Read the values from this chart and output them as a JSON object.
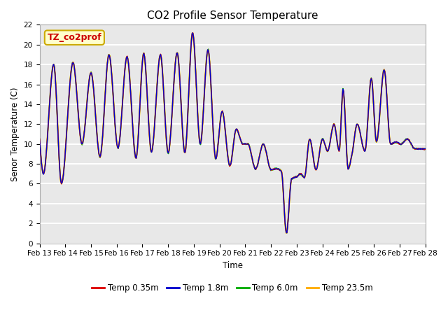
{
  "title": "CO2 Profile Sensor Temperature",
  "ylabel": "Senor Temperature (C)",
  "xlabel": "Time",
  "annotation_text": "TZ_co2prof",
  "annotation_color": "#cc0000",
  "annotation_bg": "#ffffcc",
  "annotation_edge": "#ccaa00",
  "ylim": [
    0,
    22
  ],
  "legend_labels": [
    "Temp 0.35m",
    "Temp 1.8m",
    "Temp 6.0m",
    "Temp 23.5m"
  ],
  "line_colors": [
    "#dd0000",
    "#0000cc",
    "#00aa00",
    "#ffaa00"
  ],
  "xtick_labels": [
    "Feb 13",
    "Feb 14",
    "Feb 15",
    "Feb 16",
    "Feb 17",
    "Feb 18",
    "Feb 19",
    "Feb 20",
    "Feb 21",
    "Feb 22",
    "Feb 23",
    "Feb 24",
    "Feb 25",
    "Feb 26",
    "Feb 27",
    "Feb 28"
  ],
  "bg_color": "#e8e8e8",
  "xp": [
    0,
    0.15,
    0.55,
    0.85,
    1.3,
    1.65,
    2.0,
    2.35,
    2.7,
    3.05,
    3.4,
    3.75,
    4.05,
    4.35,
    4.7,
    5.0,
    5.35,
    5.65,
    5.95,
    6.25,
    6.55,
    6.85,
    7.1,
    7.4,
    7.65,
    7.9,
    8.1,
    8.4,
    8.7,
    9.0,
    9.2,
    9.4,
    9.6,
    9.8,
    10.0,
    10.15,
    10.3,
    10.5,
    10.75,
    11.0,
    11.2,
    11.45,
    11.65,
    11.8,
    12.0,
    12.15,
    12.35,
    12.65,
    12.9,
    13.1,
    13.4,
    13.65,
    13.85,
    14.05,
    14.3,
    14.6,
    14.85,
    15.0
  ],
  "yp_235": [
    10.5,
    7.0,
    18.0,
    6.0,
    18.2,
    10.0,
    17.2,
    8.7,
    19.0,
    9.6,
    18.8,
    8.6,
    19.1,
    9.2,
    19.0,
    9.1,
    19.2,
    9.1,
    21.2,
    10.0,
    19.5,
    8.5,
    13.3,
    7.8,
    11.5,
    10.0,
    10.0,
    7.5,
    10.0,
    7.4,
    7.5,
    7.3,
    1.0,
    6.5,
    6.7,
    7.0,
    6.6,
    10.5,
    7.4,
    10.5,
    9.3,
    12.0,
    9.3,
    15.5,
    7.5,
    9.0,
    12.0,
    9.3,
    16.6,
    10.2,
    17.5,
    10.0,
    10.2,
    10.0,
    10.5,
    9.5,
    9.5,
    9.5
  ]
}
